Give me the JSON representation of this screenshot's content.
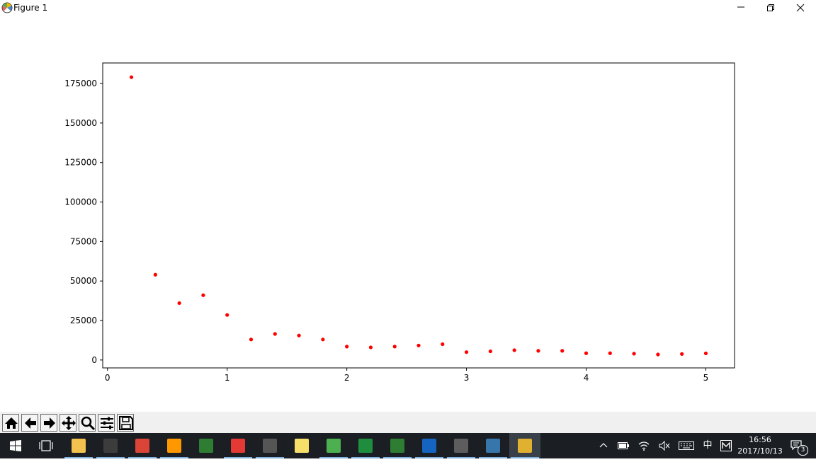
{
  "window": {
    "title": "Figure 1",
    "controls": {
      "minimize": "minimize",
      "restore": "restore",
      "close": "close"
    }
  },
  "chart_data": {
    "type": "scatter",
    "x": [
      0.2,
      0.4,
      0.6,
      0.8,
      1.0,
      1.2,
      1.4,
      1.6,
      1.8,
      2.0,
      2.2,
      2.4,
      2.6,
      2.8,
      3.0,
      3.2,
      3.4,
      3.6,
      3.8,
      4.0,
      4.2,
      4.4,
      4.6,
      4.8,
      5.0
    ],
    "y": [
      179000,
      54000,
      36000,
      41000,
      28500,
      13000,
      16500,
      15500,
      13000,
      8500,
      8000,
      8500,
      9200,
      10000,
      5000,
      5500,
      6200,
      5800,
      5800,
      4300,
      4300,
      4000,
      3500,
      3800,
      4200
    ],
    "xlim": [
      -0.04,
      5.24
    ],
    "ylim": [
      -5000,
      188000
    ],
    "xticks": [
      "0",
      "1",
      "2",
      "3",
      "4",
      "5"
    ],
    "yticks": [
      "0",
      "25000",
      "50000",
      "75000",
      "100000",
      "125000",
      "150000",
      "175000"
    ],
    "marker_color": "#ff0000",
    "grid": false
  },
  "toolbar": {
    "buttons": [
      {
        "name": "home-icon"
      },
      {
        "name": "back-arrow-icon"
      },
      {
        "name": "forward-arrow-icon"
      },
      {
        "name": "pan-icon"
      },
      {
        "name": "zoom-icon"
      },
      {
        "name": "subplots-config-icon"
      },
      {
        "name": "save-icon"
      }
    ]
  },
  "taskbar": {
    "apps": [
      {
        "name": "task-view-icon"
      },
      {
        "name": "file-explorer-icon"
      },
      {
        "name": "terminal-icon"
      },
      {
        "name": "chrome-icon"
      },
      {
        "name": "sublime-text-icon"
      },
      {
        "name": "app-icon"
      },
      {
        "name": "app-s-icon"
      },
      {
        "name": "quill-icon"
      },
      {
        "name": "sticky-notes-icon"
      },
      {
        "name": "wechat-icon"
      },
      {
        "name": "spreadsheet-icon"
      },
      {
        "name": "visual-studio-icon"
      },
      {
        "name": "bird-app-icon"
      },
      {
        "name": "tex-works-icon"
      },
      {
        "name": "python-app-icon"
      },
      {
        "name": "matplotlib-figure-icon"
      }
    ],
    "tray": {
      "ime": "中",
      "clock_time": "16:56",
      "clock_date": "2017/10/13",
      "notification_count": "3"
    }
  }
}
